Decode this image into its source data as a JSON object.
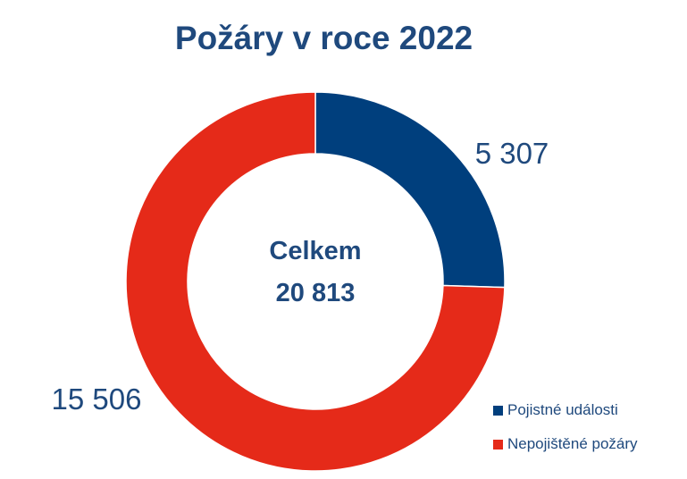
{
  "chart_data": {
    "type": "pie",
    "variant": "donut",
    "title": "Požáry v roce 2022",
    "center_label": "Celkem",
    "center_value": "20 813",
    "series": [
      {
        "name": "Pojistné události",
        "value": 5307,
        "label": "5 307",
        "color": "#003f7d"
      },
      {
        "name": "Nepojištěné požáry",
        "value": 15506,
        "label": "15 506",
        "color": "#e52a19"
      }
    ],
    "legend_position": "bottom-right"
  },
  "colors": {
    "title": "#1f497d",
    "label": "#1f497d",
    "center_text": "#1f497d"
  }
}
